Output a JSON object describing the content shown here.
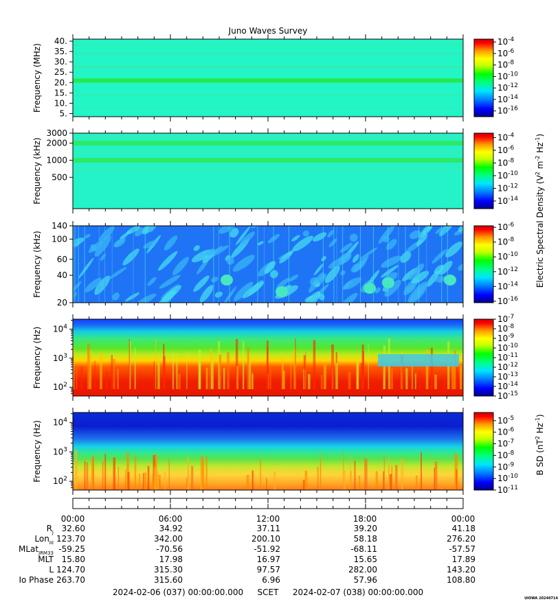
{
  "title": "Juno Waves Survey",
  "colors": {
    "colormap": [
      "#00008b",
      "#0000ff",
      "#0080ff",
      "#00e6ff",
      "#00ff80",
      "#00ff00",
      "#c8ff00",
      "#ffff00",
      "#ff9900",
      "#ff0000",
      "#cc0000"
    ],
    "panel1_bg": "#22f5c6",
    "panel2_bg": "#24f2c8",
    "panel3_bg": "#1f74f5"
  },
  "chart_data": [
    {
      "type": "heatmap",
      "ylabel": "Frequency (MHz)",
      "yscale": "linear",
      "ylim": [
        3.5,
        41
      ],
      "yticks": [
        "40.",
        "35.",
        "30.",
        "25.",
        "20.",
        "15.",
        "10.",
        "5."
      ],
      "ytick_values": [
        40,
        35,
        30,
        25,
        20,
        15,
        10,
        5
      ],
      "colorbar_ticks": [
        "10-4",
        "10-6",
        "10-8",
        "10-10",
        "10-12",
        "10-14",
        "10-16"
      ],
      "colorbar_exponents": [
        -4,
        -6,
        -8,
        -10,
        -12,
        -14,
        -16
      ],
      "colorbar_range": [
        -17,
        -3.5
      ]
    },
    {
      "type": "heatmap",
      "ylabel": "Frequency (kHz)",
      "yscale": "log",
      "ylim": [
        140,
        3000
      ],
      "yticks": [
        "3000",
        "2000",
        "1000",
        "500"
      ],
      "ytick_values": [
        3000,
        2000,
        1000,
        500
      ],
      "colorbar_ticks": [
        "10-4",
        "10-6",
        "10-8",
        "10-10",
        "10-12",
        "10-14"
      ],
      "colorbar_exponents": [
        -4,
        -6,
        -8,
        -10,
        -12,
        -14
      ],
      "colorbar_range": [
        -15.2,
        -3.3
      ]
    },
    {
      "type": "heatmap",
      "ylabel": "Frequency (kHz)",
      "yscale": "log",
      "ylim": [
        20,
        140
      ],
      "yticks": [
        "140",
        "100",
        "60",
        "40",
        "20"
      ],
      "ytick_values": [
        140,
        100,
        60,
        40,
        20
      ],
      "colorbar_ticks": [
        "10-6",
        "10-8",
        "10-10",
        "10-12",
        "10-14",
        "10-16"
      ],
      "colorbar_exponents": [
        -6,
        -8,
        -10,
        -12,
        -14,
        -16
      ],
      "colorbar_range": [
        -16.2,
        -5.8
      ],
      "colorbar_label": "Electric Spectral Density (V2 m-2 Hz-1)"
    },
    {
      "type": "heatmap",
      "ylabel": "Frequency (Hz)",
      "yscale": "log",
      "ylim": [
        50,
        22000
      ],
      "yticks": [
        "104",
        "103",
        "102"
      ],
      "ytick_exponents": [
        4,
        3,
        2
      ],
      "colorbar_ticks": [
        "10-7",
        "10-8",
        "10-9",
        "10-10",
        "10-11",
        "10-12",
        "10-13",
        "10-14",
        "10-15"
      ],
      "colorbar_exponents": [
        -7,
        -8,
        -9,
        -10,
        -11,
        -12,
        -13,
        -14,
        -15
      ],
      "colorbar_range": [
        -15,
        -7
      ]
    },
    {
      "type": "heatmap",
      "ylabel": "Frequency (Hz)",
      "yscale": "log",
      "ylim": [
        50,
        22000
      ],
      "yticks": [
        "104",
        "103",
        "102"
      ],
      "ytick_exponents": [
        4,
        3,
        2
      ],
      "colorbar_ticks": [
        "10-5",
        "10-6",
        "10-7",
        "10-8",
        "10-9",
        "10-10",
        "10-11"
      ],
      "colorbar_exponents": [
        -5,
        -6,
        -7,
        -8,
        -9,
        -10,
        -11
      ],
      "colorbar_range": [
        -11,
        -4.3
      ],
      "colorbar_label": "B SD (nT2 Hz-1)"
    }
  ],
  "time_axis": {
    "ticks": [
      "00:00",
      "06:00",
      "12:00",
      "18:00",
      "00:00"
    ],
    "rows": [
      {
        "label": "R",
        "sub": "J",
        "values": [
          "32.60",
          "34.92",
          "37.11",
          "39.20",
          "41.18"
        ]
      },
      {
        "label": "Lon",
        "sub": "III",
        "values": [
          "123.70",
          "342.00",
          "200.10",
          "58.18",
          "276.20"
        ]
      },
      {
        "label": "MLat",
        "sub": "JRM33",
        "values": [
          "-59.25",
          "-70.56",
          "-51.92",
          "-68.11",
          "-57.57"
        ]
      },
      {
        "label": "MLT",
        "sub": "",
        "values": [
          "15.80",
          "17.98",
          "16.97",
          "15.65",
          "17.89"
        ]
      },
      {
        "label": "L",
        "sub": "",
        "values": [
          "124.70",
          "315.30",
          "97.57",
          "282.00",
          "143.20"
        ]
      },
      {
        "label": "Io Phase",
        "sub": "",
        "values": [
          "263.70",
          "315.60",
          "6.96",
          "57.96",
          "108.80"
        ]
      }
    ],
    "start": "2024-02-06 (037) 00:00:00.000",
    "scet": "SCET",
    "end": "2024-02-07 (038) 00:00:00.000"
  },
  "footer_tag": "UIOWA 20240714"
}
